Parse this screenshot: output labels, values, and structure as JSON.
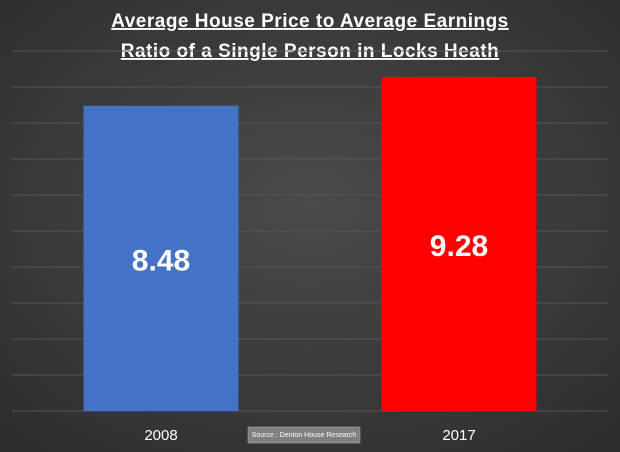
{
  "chart_data": {
    "type": "bar",
    "title": [
      "Average House Price to Average Earnings",
      "Ratio of a Single Person in Locks Heath"
    ],
    "categories": [
      "2008",
      "2017"
    ],
    "values": [
      8.48,
      9.28
    ],
    "colors": [
      "#4472c4",
      "#ff0000"
    ],
    "ylim": [
      0,
      10
    ],
    "yticks": [
      0,
      1,
      2,
      3,
      4,
      5,
      6,
      7,
      8,
      9,
      10
    ],
    "grid": true,
    "source": "Source : Denton House Research"
  }
}
